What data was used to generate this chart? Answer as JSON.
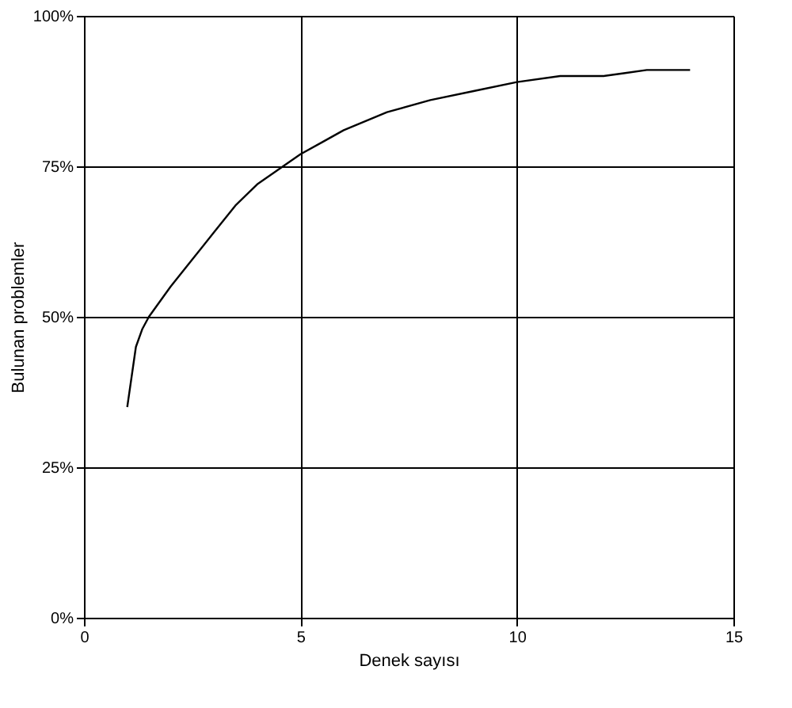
{
  "chart_data": {
    "type": "line",
    "xlabel": "Denek sayısı",
    "ylabel": "Bulunan problemler",
    "x": [
      1,
      1.1,
      1.2,
      1.35,
      1.5,
      2,
      2.5,
      3,
      3.5,
      4,
      4.5,
      5,
      5.5,
      6,
      7,
      8,
      9,
      10,
      11,
      11.5,
      12,
      12.5,
      13,
      13.5,
      14
    ],
    "series": [
      {
        "color": "#000000",
        "values": [
          35,
          40,
          45,
          48,
          50,
          55,
          59.5,
          64,
          68.5,
          72,
          74.5,
          77,
          79,
          81,
          84,
          86,
          87.5,
          89,
          90,
          90,
          90,
          90.5,
          91,
          91,
          91
        ]
      }
    ],
    "xlim": [
      0,
      15
    ],
    "xticks": [
      0,
      5,
      10,
      15
    ],
    "ylim": [
      0,
      100
    ],
    "yticks": [
      {
        "value": 0,
        "label": "0%"
      },
      {
        "value": 25,
        "label": "25%"
      },
      {
        "value": 50,
        "label": "50%"
      },
      {
        "value": 75,
        "label": "75%"
      },
      {
        "value": 100,
        "label": "100%"
      }
    ],
    "grid": true,
    "marker": "none",
    "line_style": "solid"
  }
}
